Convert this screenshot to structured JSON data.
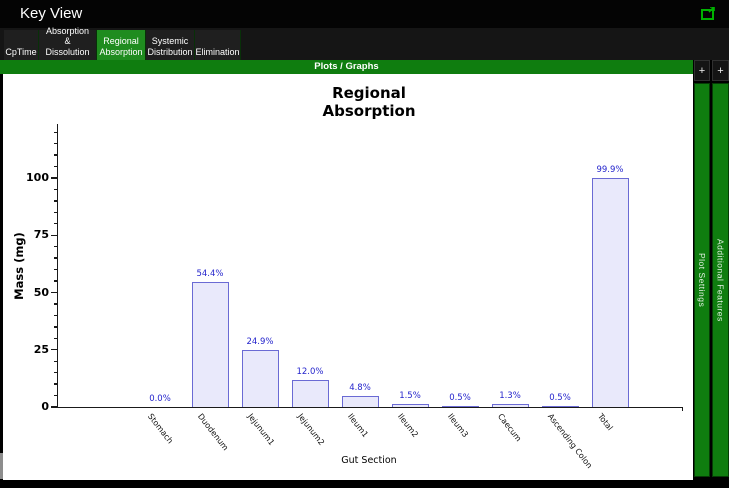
{
  "titlebar": {
    "title": "Key View"
  },
  "tabs": [
    {
      "label": "CpTime",
      "selected": false
    },
    {
      "label": "Absorption &\nDissolution",
      "selected": false
    },
    {
      "label": "Regional\nAbsorption",
      "selected": true
    },
    {
      "label": "Systemic\nDistribution",
      "selected": false
    },
    {
      "label": "Elimination",
      "selected": false
    }
  ],
  "plots_bar": {
    "label": "Plots / Graphs",
    "plus_button": "+"
  },
  "side_panels": [
    {
      "label": "Plot Settings"
    },
    {
      "label": "Additional Features"
    }
  ],
  "chart_data": {
    "type": "bar",
    "title": "Regional\nAbsorption",
    "xlabel": "Gut Section",
    "ylabel": "Mass (mg)",
    "categories": [
      "Stomach",
      "Duodenum",
      "Jejunum1",
      "Jejunum2",
      "Ileum1",
      "Ileum2",
      "Ileum3",
      "Caecum",
      "Ascending Colon",
      "Total"
    ],
    "values": [
      0.0,
      54.4,
      24.9,
      12.0,
      4.8,
      1.5,
      0.5,
      1.3,
      0.5,
      99.9
    ],
    "bar_labels": [
      "0.0%",
      "54.4%",
      "24.9%",
      "12.0%",
      "4.8%",
      "1.5%",
      "0.5%",
      "1.3%",
      "0.5%",
      "99.9%"
    ],
    "yticks": [
      0,
      25,
      50,
      75,
      100
    ],
    "minor_tick_step": 5,
    "ylim": [
      0,
      123
    ],
    "grid": false,
    "legend": null,
    "colors": {
      "bar_fill": "#e9e9fb",
      "bar_border": "#6a6ad4",
      "bar_label": "#2424cc",
      "axis": "#1a1a1a"
    }
  },
  "ui_colors": {
    "green_bar": "#0f7d0f",
    "tab_selected": "#1f8c1f",
    "icon_green": "#00b300"
  }
}
